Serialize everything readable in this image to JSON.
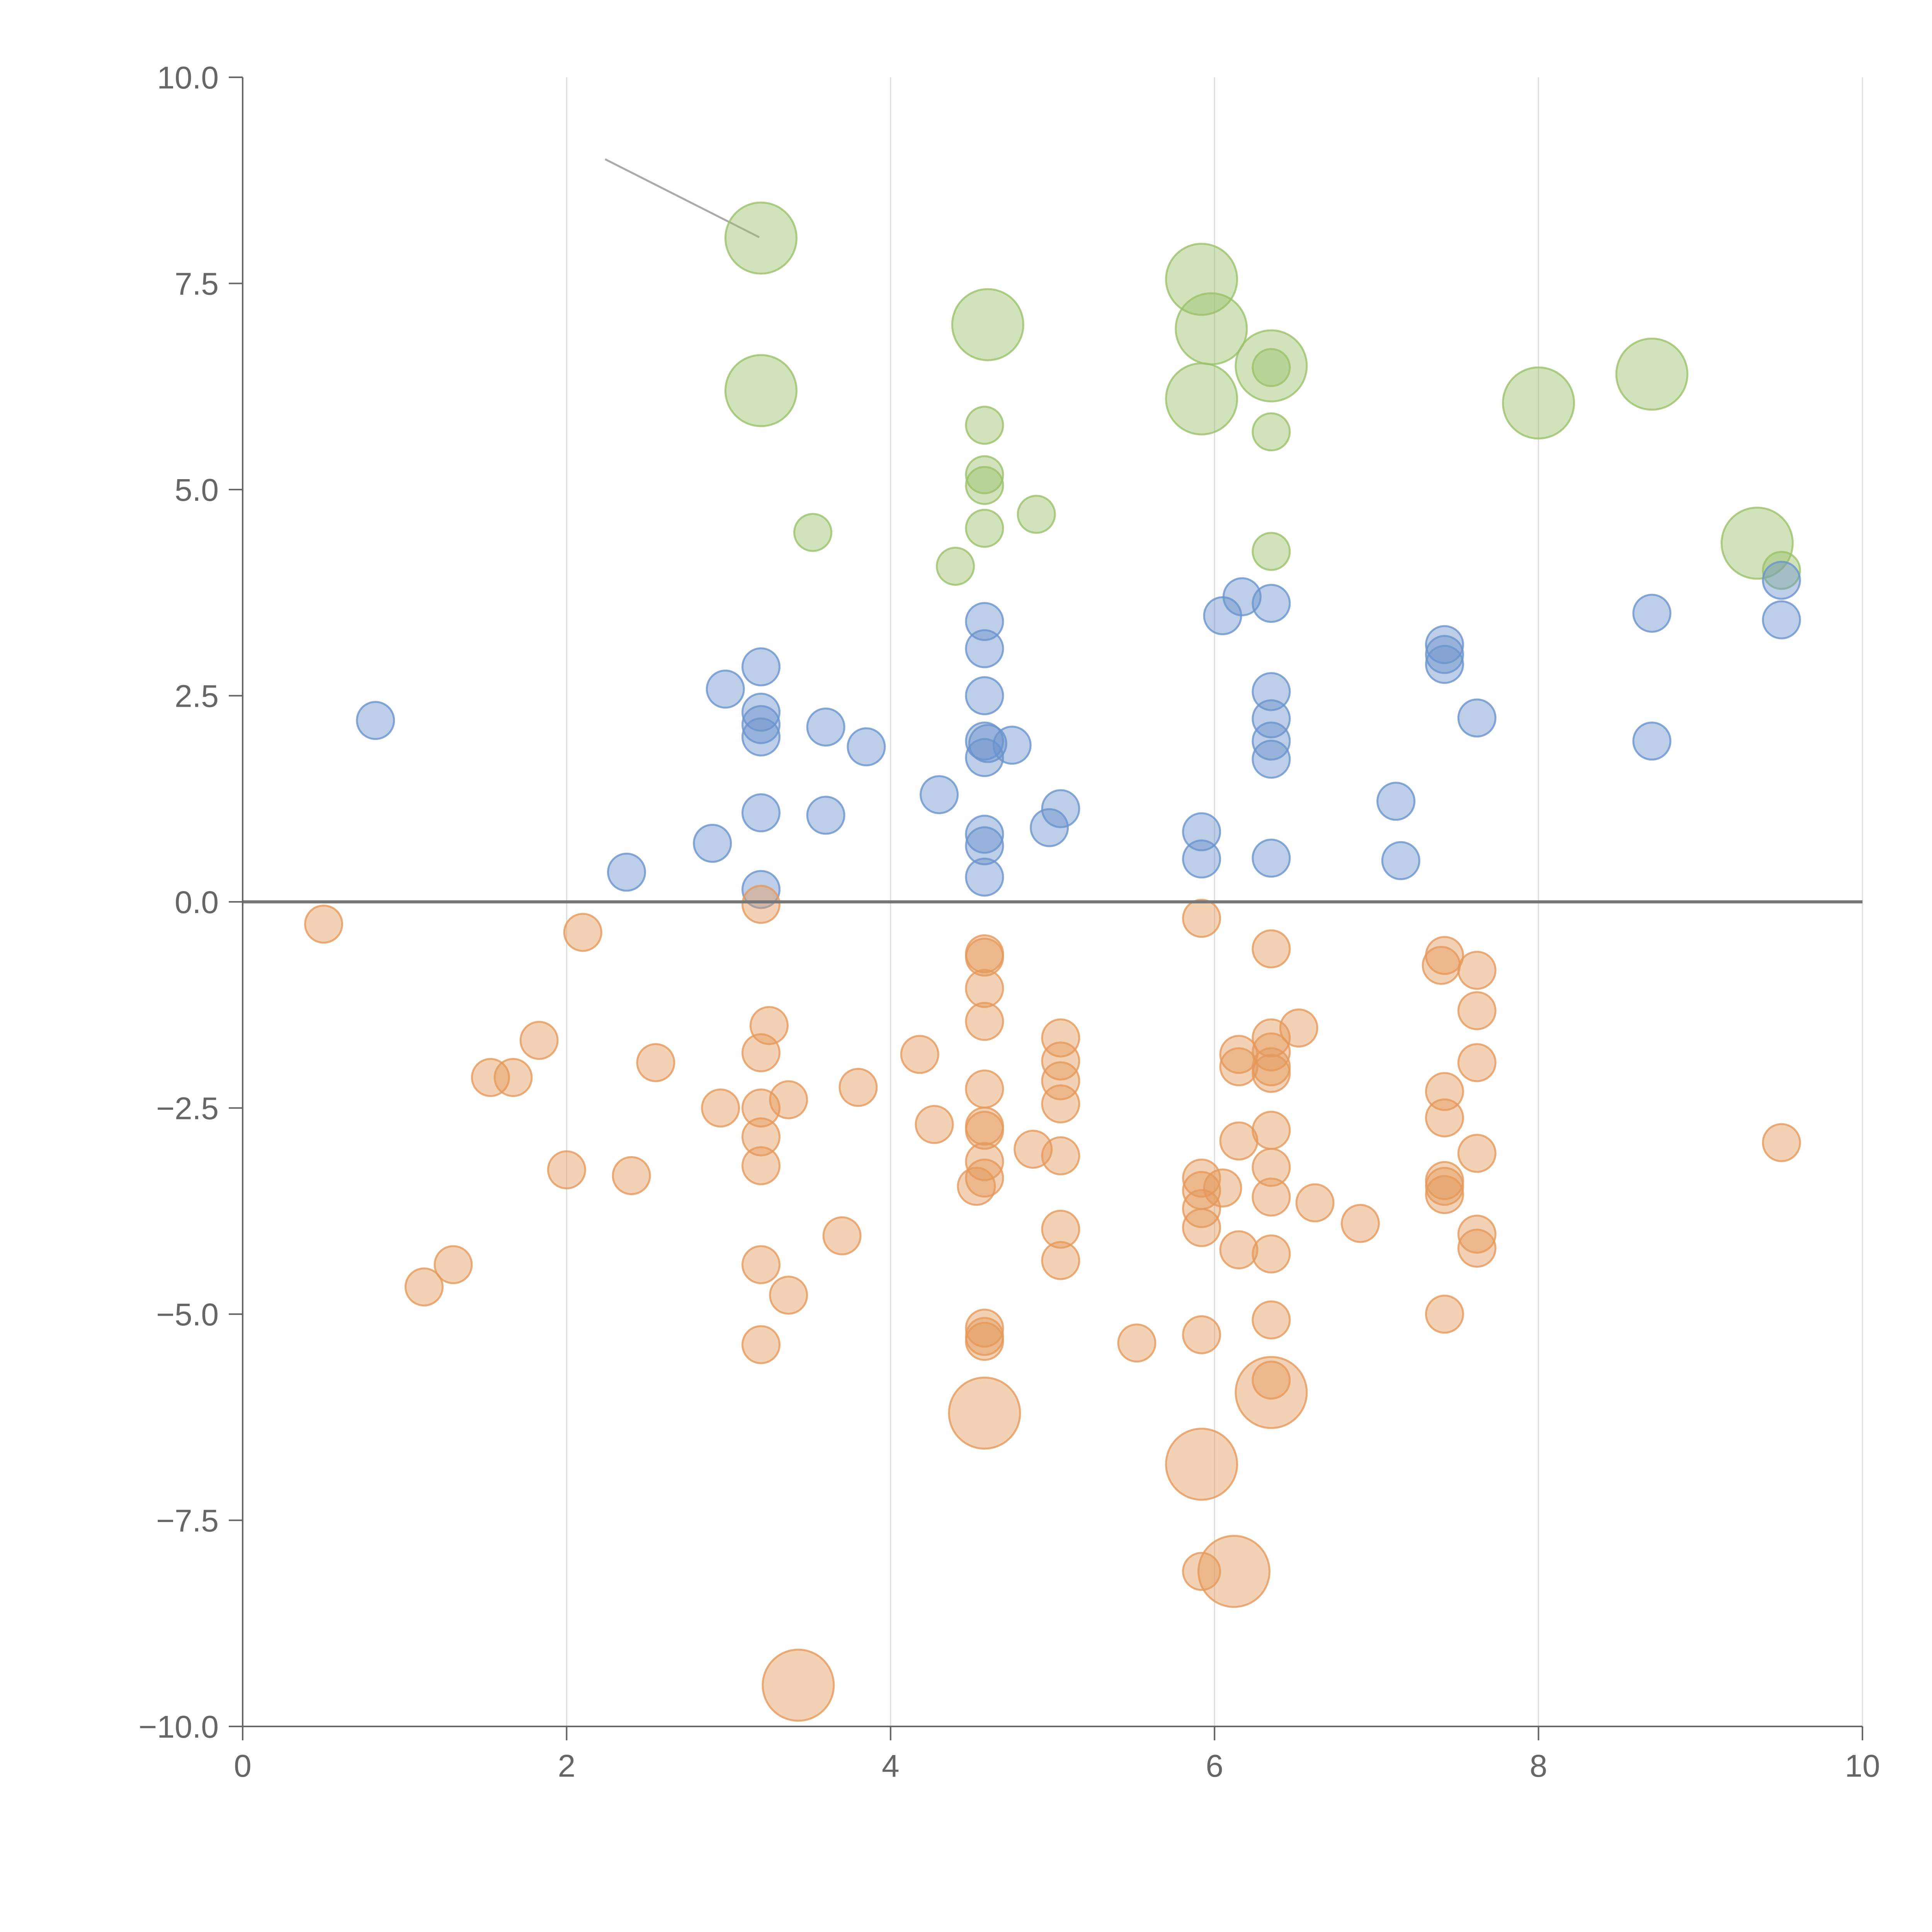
{
  "chart_data": {
    "type": "scatter",
    "title": "",
    "xlabel": "",
    "ylabel": "",
    "xlim": [
      0,
      10
    ],
    "ylim": [
      -10,
      10
    ],
    "x_ticks": [
      "0",
      "2",
      "4",
      "6",
      "8",
      "10"
    ],
    "y_ticks": [
      "10.0",
      "7.5",
      "5.0",
      "2.5",
      "0.0",
      "−2.5",
      "−5.0",
      "−7.5",
      "−10.0"
    ],
    "grid": "vertical",
    "reference_line_y": 0,
    "colors": {
      "green": "#9cc16b",
      "blue": "#6b93cc",
      "orange": "#e59a5c",
      "axis": "#666666",
      "grid": "#dddddd",
      "leader": "#aaaaaa"
    },
    "series": [
      {
        "color_key": "green",
        "points": [
          {
            "x": 3.2,
            "y": 8.05,
            "big": true
          },
          {
            "x": 3.2,
            "y": 6.2,
            "big": true
          },
          {
            "x": 4.6,
            "y": 7.0,
            "big": true
          },
          {
            "x": 5.92,
            "y": 7.55,
            "big": true
          },
          {
            "x": 5.98,
            "y": 6.95,
            "big": true
          },
          {
            "x": 5.92,
            "y": 6.1,
            "big": true
          },
          {
            "x": 6.35,
            "y": 6.5,
            "big": true
          },
          {
            "x": 8.0,
            "y": 6.05,
            "big": true
          },
          {
            "x": 8.7,
            "y": 6.4,
            "big": true
          },
          {
            "x": 9.35,
            "y": 4.35,
            "big": true
          },
          {
            "x": 4.58,
            "y": 5.78
          },
          {
            "x": 4.58,
            "y": 5.18
          },
          {
            "x": 4.58,
            "y": 5.05
          },
          {
            "x": 4.58,
            "y": 4.53
          },
          {
            "x": 4.9,
            "y": 4.7
          },
          {
            "x": 3.52,
            "y": 4.48
          },
          {
            "x": 4.4,
            "y": 4.07
          },
          {
            "x": 6.35,
            "y": 6.48
          },
          {
            "x": 6.35,
            "y": 5.7
          },
          {
            "x": 6.35,
            "y": 4.25
          },
          {
            "x": 9.5,
            "y": 4.02
          }
        ]
      },
      {
        "color_key": "blue",
        "points": [
          {
            "x": 0.82,
            "y": 2.2
          },
          {
            "x": 2.37,
            "y": 0.36
          },
          {
            "x": 2.9,
            "y": 0.71
          },
          {
            "x": 2.98,
            "y": 2.58
          },
          {
            "x": 3.2,
            "y": 2.85
          },
          {
            "x": 3.2,
            "y": 2.3
          },
          {
            "x": 3.2,
            "y": 2.15
          },
          {
            "x": 3.2,
            "y": 2.0
          },
          {
            "x": 3.2,
            "y": 1.08
          },
          {
            "x": 3.2,
            "y": 0.15
          },
          {
            "x": 3.6,
            "y": 2.12
          },
          {
            "x": 3.6,
            "y": 1.05
          },
          {
            "x": 3.85,
            "y": 1.88
          },
          {
            "x": 4.3,
            "y": 1.3
          },
          {
            "x": 4.58,
            "y": 3.4
          },
          {
            "x": 4.58,
            "y": 3.07
          },
          {
            "x": 4.58,
            "y": 2.5
          },
          {
            "x": 4.58,
            "y": 1.95
          },
          {
            "x": 4.6,
            "y": 1.92
          },
          {
            "x": 4.58,
            "y": 1.75
          },
          {
            "x": 4.75,
            "y": 1.9
          },
          {
            "x": 4.58,
            "y": 0.82
          },
          {
            "x": 4.58,
            "y": 0.68
          },
          {
            "x": 4.58,
            "y": 0.3
          },
          {
            "x": 4.98,
            "y": 0.9
          },
          {
            "x": 5.05,
            "y": 1.13
          },
          {
            "x": 5.92,
            "y": 0.85
          },
          {
            "x": 5.92,
            "y": 0.52
          },
          {
            "x": 6.05,
            "y": 3.47
          },
          {
            "x": 6.17,
            "y": 3.7
          },
          {
            "x": 6.35,
            "y": 3.62
          },
          {
            "x": 6.35,
            "y": 2.55
          },
          {
            "x": 6.35,
            "y": 2.22
          },
          {
            "x": 6.35,
            "y": 1.95
          },
          {
            "x": 6.35,
            "y": 1.73
          },
          {
            "x": 6.35,
            "y": 0.53
          },
          {
            "x": 7.12,
            "y": 1.22
          },
          {
            "x": 7.15,
            "y": 0.5
          },
          {
            "x": 7.42,
            "y": 3.12
          },
          {
            "x": 7.42,
            "y": 3.0
          },
          {
            "x": 7.42,
            "y": 2.88
          },
          {
            "x": 7.62,
            "y": 2.23
          },
          {
            "x": 8.7,
            "y": 3.5
          },
          {
            "x": 8.7,
            "y": 1.95
          },
          {
            "x": 9.5,
            "y": 3.9
          },
          {
            "x": 9.5,
            "y": 3.42
          }
        ]
      },
      {
        "color_key": "orange",
        "points": [
          {
            "x": 4.58,
            "y": -6.2,
            "big": true
          },
          {
            "x": 5.92,
            "y": -6.82,
            "big": true
          },
          {
            "x": 6.35,
            "y": -5.95,
            "big": true
          },
          {
            "x": 6.12,
            "y": -8.12,
            "big": true
          },
          {
            "x": 3.43,
            "y": -9.5,
            "big": true
          },
          {
            "x": 0.5,
            "y": -0.27
          },
          {
            "x": 2.1,
            "y": -0.37
          },
          {
            "x": 1.83,
            "y": -1.68
          },
          {
            "x": 1.53,
            "y": -2.13
          },
          {
            "x": 1.67,
            "y": -2.13
          },
          {
            "x": 2.55,
            "y": -1.95
          },
          {
            "x": 2.95,
            "y": -2.5
          },
          {
            "x": 2.0,
            "y": -3.25
          },
          {
            "x": 2.4,
            "y": -3.32
          },
          {
            "x": 1.3,
            "y": -4.4
          },
          {
            "x": 1.12,
            "y": -4.67
          },
          {
            "x": 3.2,
            "y": -0.03
          },
          {
            "x": 3.25,
            "y": -1.5
          },
          {
            "x": 3.2,
            "y": -1.83
          },
          {
            "x": 3.2,
            "y": -2.5
          },
          {
            "x": 3.37,
            "y": -2.4
          },
          {
            "x": 3.2,
            "y": -2.85
          },
          {
            "x": 3.2,
            "y": -3.2
          },
          {
            "x": 3.2,
            "y": -4.4
          },
          {
            "x": 3.37,
            "y": -4.77
          },
          {
            "x": 3.2,
            "y": -5.37
          },
          {
            "x": 3.7,
            "y": -4.05
          },
          {
            "x": 3.8,
            "y": -2.25
          },
          {
            "x": 4.18,
            "y": -1.85
          },
          {
            "x": 4.27,
            "y": -2.7
          },
          {
            "x": 4.58,
            "y": -0.63
          },
          {
            "x": 4.58,
            "y": -0.67
          },
          {
            "x": 4.58,
            "y": -1.05
          },
          {
            "x": 4.58,
            "y": -1.45
          },
          {
            "x": 4.58,
            "y": -2.27
          },
          {
            "x": 4.58,
            "y": -2.72
          },
          {
            "x": 4.58,
            "y": -2.77
          },
          {
            "x": 4.58,
            "y": -3.15
          },
          {
            "x": 4.58,
            "y": -3.35
          },
          {
            "x": 4.53,
            "y": -3.45
          },
          {
            "x": 4.58,
            "y": -5.17
          },
          {
            "x": 4.58,
            "y": -5.27
          },
          {
            "x": 4.58,
            "y": -5.33
          },
          {
            "x": 4.88,
            "y": -3.0
          },
          {
            "x": 5.05,
            "y": -1.65
          },
          {
            "x": 5.05,
            "y": -1.93
          },
          {
            "x": 5.05,
            "y": -2.17
          },
          {
            "x": 5.05,
            "y": -2.45
          },
          {
            "x": 5.05,
            "y": -3.08
          },
          {
            "x": 5.05,
            "y": -3.97
          },
          {
            "x": 5.05,
            "y": -4.35
          },
          {
            "x": 5.52,
            "y": -5.35
          },
          {
            "x": 5.92,
            "y": -0.2
          },
          {
            "x": 5.92,
            "y": -3.35
          },
          {
            "x": 5.92,
            "y": -3.5
          },
          {
            "x": 5.92,
            "y": -3.72
          },
          {
            "x": 5.92,
            "y": -3.95
          },
          {
            "x": 6.05,
            "y": -3.47
          },
          {
            "x": 5.92,
            "y": -5.25
          },
          {
            "x": 5.92,
            "y": -8.12
          },
          {
            "x": 6.15,
            "y": -1.85
          },
          {
            "x": 6.15,
            "y": -2.0
          },
          {
            "x": 6.15,
            "y": -2.9
          },
          {
            "x": 6.15,
            "y": -4.22
          },
          {
            "x": 6.35,
            "y": -0.57
          },
          {
            "x": 6.35,
            "y": -1.65
          },
          {
            "x": 6.35,
            "y": -1.82
          },
          {
            "x": 6.35,
            "y": -2.0
          },
          {
            "x": 6.35,
            "y": -2.08
          },
          {
            "x": 6.35,
            "y": -2.77
          },
          {
            "x": 6.35,
            "y": -3.22
          },
          {
            "x": 6.35,
            "y": -3.58
          },
          {
            "x": 6.35,
            "y": -4.27
          },
          {
            "x": 6.35,
            "y": -5.07
          },
          {
            "x": 6.35,
            "y": -5.8
          },
          {
            "x": 6.52,
            "y": -1.53
          },
          {
            "x": 6.62,
            "y": -3.65
          },
          {
            "x": 6.9,
            "y": -3.9
          },
          {
            "x": 7.42,
            "y": -0.65
          },
          {
            "x": 7.4,
            "y": -0.77
          },
          {
            "x": 7.42,
            "y": -2.3
          },
          {
            "x": 7.42,
            "y": -2.62
          },
          {
            "x": 7.42,
            "y": -3.38
          },
          {
            "x": 7.42,
            "y": -3.45
          },
          {
            "x": 7.42,
            "y": -3.55
          },
          {
            "x": 7.42,
            "y": -5.0
          },
          {
            "x": 7.62,
            "y": -0.83
          },
          {
            "x": 7.62,
            "y": -1.32
          },
          {
            "x": 7.62,
            "y": -1.95
          },
          {
            "x": 7.62,
            "y": -3.05
          },
          {
            "x": 7.62,
            "y": -4.03
          },
          {
            "x": 7.62,
            "y": -4.2
          },
          {
            "x": 9.5,
            "y": -2.92
          }
        ]
      }
    ]
  }
}
